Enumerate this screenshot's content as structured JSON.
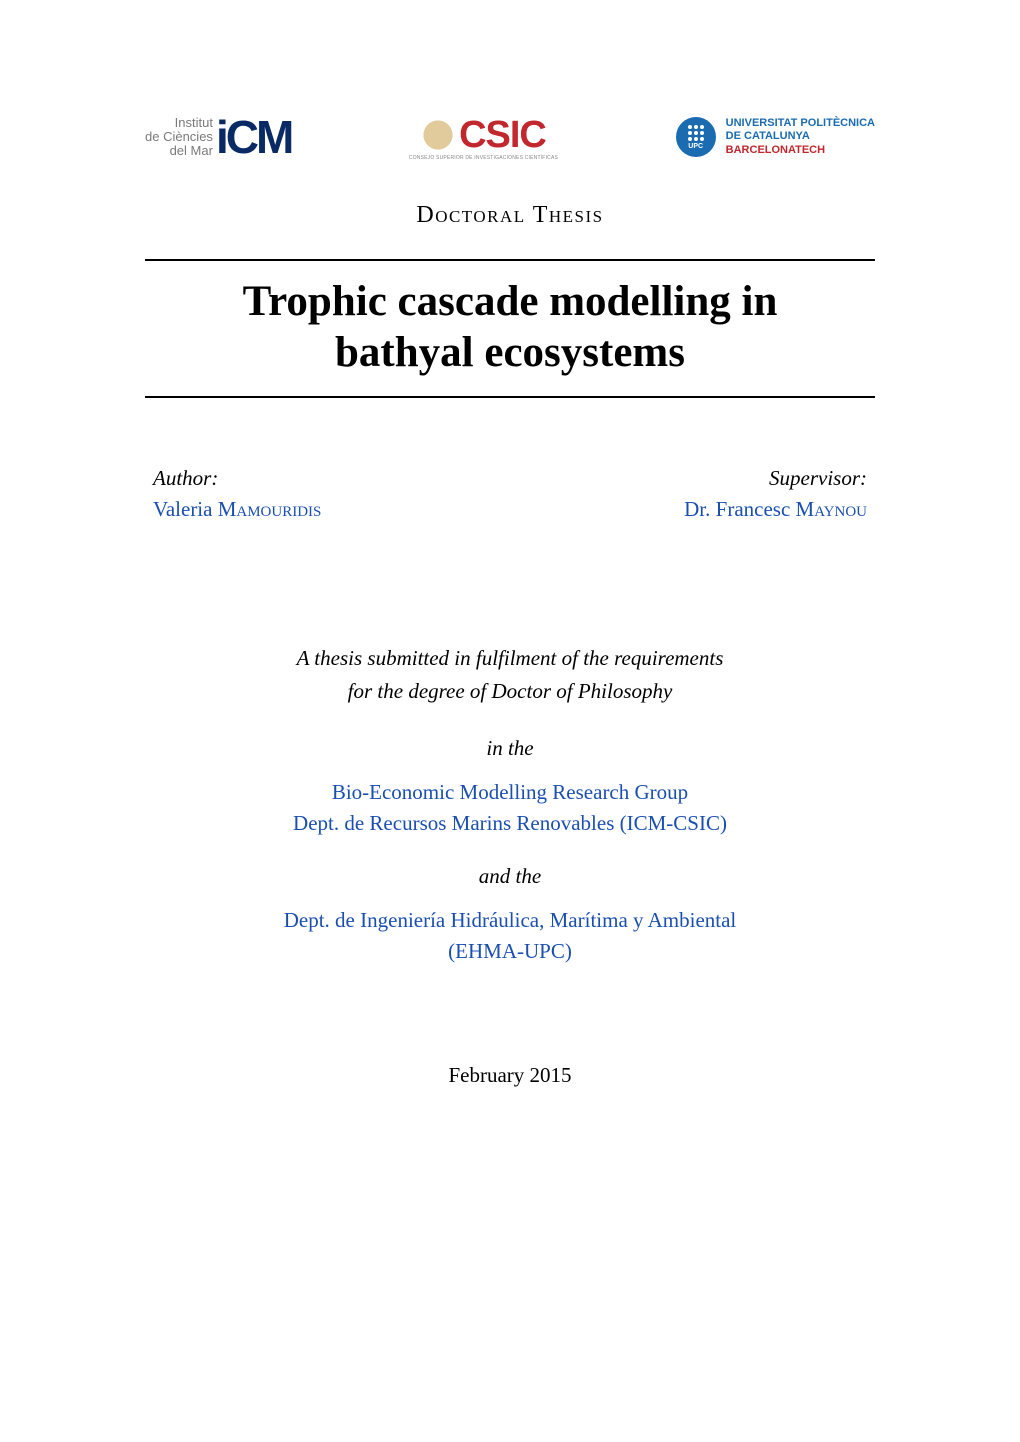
{
  "colors": {
    "text": "#000000",
    "link": "#1a4fb0",
    "icm_blue": "#0a2a66",
    "csic_red": "#c1272d",
    "csic_gold": "#c9a14a",
    "upc_blue": "#1a6bb0",
    "background": "#ffffff",
    "rule": "#000000"
  },
  "typography": {
    "body_family": "Computer Modern / Georgia / serif",
    "title_pt": 32,
    "body_pt": 16,
    "smallcaps_doc_type_pt": 18
  },
  "logos": {
    "icm": {
      "text_line1": "Institut",
      "text_line2": "de Ciències",
      "text_line3": "del Mar",
      "glyph": "iCM"
    },
    "csic": {
      "glyph": "CSIC",
      "subline": "CONSEJO SUPERIOR DE INVESTIGACIONES CIENTÍFICAS"
    },
    "upc": {
      "badge_label": "UPC",
      "line1": "UNIVERSITAT POLITÈCNICA",
      "line2": "DE CATALUNYA",
      "line3": "BARCELONATECH"
    }
  },
  "doc_type": "Doctoral Thesis",
  "title_line1": "Trophic cascade modelling in",
  "title_line2": "bathyal ecosystems",
  "author": {
    "role": "Author:",
    "first": "Valeria",
    "surname": "Mamouridis"
  },
  "supervisor": {
    "role": "Supervisor:",
    "prefix": "Dr. Francesc",
    "surname": "Maynou"
  },
  "submission_line1": "A thesis submitted in fulfilment of the requirements",
  "submission_line2": "for the degree of Doctor of Philosophy",
  "in_the": "in the",
  "affil1_line1": "Bio-Economic Modelling Research Group",
  "affil1_line2": "Dept. de Recursos Marins Renovables (ICM-CSIC)",
  "and_the": "and the",
  "affil2_line1": "Dept. de Ingeniería Hidráulica, Marítima y Ambiental",
  "affil2_line2": "(EHMA-UPC)",
  "date": "February 2015"
}
